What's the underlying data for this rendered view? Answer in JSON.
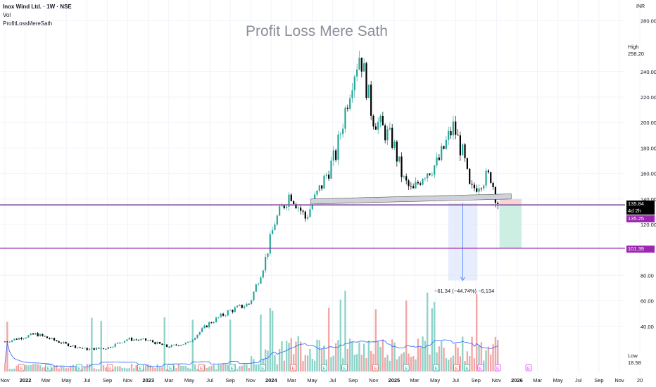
{
  "header": {
    "title": "Inox Wind Ltd. · 1W · NSE",
    "volume_label": "Vol",
    "indicator": "ProfitLossMereSath"
  },
  "watermark": "Profit Loss Mere Sath",
  "currency": "INR",
  "price_tags": {
    "high_label": "High",
    "high_value": "258.20",
    "last_price": "135.84",
    "countdown": "4d 2h",
    "stop_price": "135.25",
    "target_price": "101.39",
    "low_label": "Low",
    "low_value": "18.58"
  },
  "measure_label": "−61.34 (−44.74%) −6,134",
  "colors": {
    "up": "#26a69a",
    "down": "#000000",
    "vol_up": "#8fd3c9",
    "vol_down": "#f3a6a6",
    "level_line": "#9c27b0",
    "stop_zone": "#f8d5d5",
    "target_zone": "#cdeee3",
    "measure_zone": "#dde6fb",
    "volume_ma": "#2962ff",
    "grid": "#f0f3fa"
  },
  "chart_data": {
    "type": "candlestick",
    "symbol": "Inox Wind Ltd.",
    "timeframe": "1W",
    "exchange": "NSE",
    "y_ticks": [
      40,
      60,
      80,
      120,
      140,
      160,
      180,
      200,
      220,
      240,
      280
    ],
    "x_ticks": [
      "Nov",
      "2022",
      "Mar",
      "May",
      "Jul",
      "Sep",
      "Nov",
      "2023",
      "Mar",
      "May",
      "Jul",
      "Sep",
      "Nov",
      "2024",
      "Mar",
      "May",
      "Jul",
      "Sep",
      "Nov",
      "2025",
      "Mar",
      "May",
      "Jul",
      "Sep",
      "Nov",
      "2026",
      "Mar",
      "May",
      "Jul",
      "Sep",
      "Nov",
      "20"
    ],
    "y_scale": "linear",
    "ylim": [
      18,
      282
    ],
    "price_path": [
      [
        "2021-11-01",
        28
      ],
      [
        "2022-02-01",
        34
      ],
      [
        "2022-05-01",
        26
      ],
      [
        "2022-07-01",
        22
      ],
      [
        "2022-09-01",
        23
      ],
      [
        "2022-11-01",
        30
      ],
      [
        "2023-01-01",
        29
      ],
      [
        "2023-03-01",
        24
      ],
      [
        "2023-05-01",
        27
      ],
      [
        "2023-07-01",
        42
      ],
      [
        "2023-09-01",
        52
      ],
      [
        "2023-11-01",
        58
      ],
      [
        "2023-12-15",
        90
      ],
      [
        "2024-01-15",
        122
      ],
      [
        "2024-03-01",
        145
      ],
      [
        "2024-04-15",
        125
      ],
      [
        "2024-06-01",
        150
      ],
      [
        "2024-07-15",
        175
      ],
      [
        "2024-09-01",
        235
      ],
      [
        "2024-09-25",
        255
      ],
      [
        "2024-11-01",
        205
      ],
      [
        "2025-01-01",
        185
      ],
      [
        "2025-02-01",
        155
      ],
      [
        "2025-03-01",
        145
      ],
      [
        "2025-04-01",
        160
      ],
      [
        "2025-05-15",
        168
      ],
      [
        "2025-06-15",
        188
      ],
      [
        "2025-07-01",
        197
      ],
      [
        "2025-08-01",
        172
      ],
      [
        "2025-08-20",
        145
      ],
      [
        "2025-09-20",
        155
      ],
      [
        "2025-10-20",
        158
      ],
      [
        "2025-11-10",
        136
      ]
    ],
    "high": 258.2,
    "low": 18.58,
    "last": 135.84,
    "neckline": {
      "from": [
        "2024-05-01",
        136
      ],
      "to": [
        "2025-12-20",
        140
      ]
    },
    "levels": [
      135.25,
      101.39
    ],
    "short_position": {
      "entry": 135.25,
      "stop": 140,
      "target": 101.39
    },
    "measurement": {
      "change": -61.34,
      "percent": -44.74,
      "ticks": -6134,
      "from_price": 137,
      "to_price": 76
    },
    "volume_ma": true,
    "earnings_markers": "E",
    "grid": true
  }
}
